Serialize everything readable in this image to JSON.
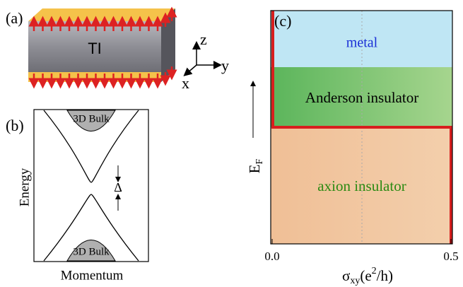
{
  "panel_a": {
    "label": "(a)",
    "block_label": "TI",
    "axis_z": "z",
    "axis_y": "y",
    "axis_x": "x"
  },
  "panel_b": {
    "label": "(b)",
    "y_label": "Energy",
    "x_label": "Momentum",
    "bulk_top": "3D Bulk",
    "bulk_bottom": "3D Bulk",
    "gap": "Δ"
  },
  "panel_c": {
    "label": "(c)",
    "regions": [
      "metal",
      "Anderson insulator",
      "axion insulator"
    ],
    "y_label": {
      "main": "E",
      "sub": "F"
    },
    "x_label": {
      "symbol": "σ",
      "sub": "xy",
      "open": "(e",
      "sup": "2",
      "close": "/h)"
    },
    "x_ticks": [
      "0.0",
      "0.5"
    ]
  }
}
